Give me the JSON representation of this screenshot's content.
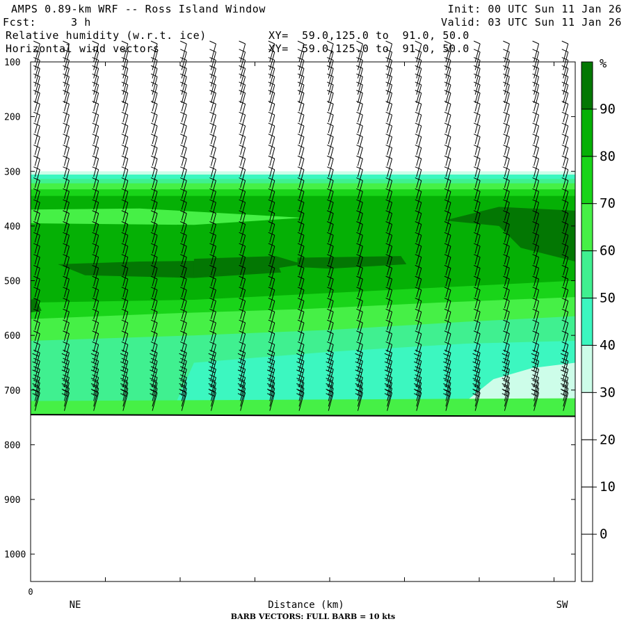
{
  "header": {
    "title": "AMPS 0.89-km WRF -- Ross Island Window",
    "fcst_label": "Fcst:",
    "fcst_value": "3 h",
    "init": "Init: 00 UTC Sun 11 Jan 26",
    "valid": "Valid: 03 UTC Sun 11 Jan 26",
    "field1": "Relative humidity (w.r.t. ice)",
    "field1_xy": "XY=  59.0,125.0 to  91.0, 50.0",
    "field2": "Horizontal wind vectors",
    "field2_xy": "XY=  59.0,125.0 to  91.0, 50.0"
  },
  "footer": {
    "barb_note": "BARB VECTORS:  FULL BARB = 10 kts"
  },
  "chart_data": {
    "type": "heatmap",
    "title": "Relative humidity (w.r.t. ice)",
    "xlabel": "Distance (km)",
    "x_left_label": "NE",
    "x_right_label": "SW",
    "x_origin_label": "0",
    "ylabel": "",
    "y_axis": "pressure (hPa), inverted",
    "ylim": [
      1050,
      100
    ],
    "yticks": [
      100,
      200,
      300,
      400,
      500,
      600,
      700,
      800,
      900,
      1000
    ],
    "colorbar": {
      "unit": "%",
      "levels": [
        0,
        10,
        20,
        30,
        40,
        50,
        60,
        70,
        80,
        90
      ],
      "colors": [
        "#ffffff",
        "#ffffff",
        "#ffffff",
        "#ffffff",
        "#cdfde9",
        "#3cf7c0",
        "#40f090",
        "#46f046",
        "#19d419",
        "#05b005",
        "#037703"
      ]
    },
    "contour_bands_description_hPa": [
      {
        "rh_range": "30-40",
        "top": 300,
        "bottom": 306
      },
      {
        "rh_range": "40-50",
        "top": 306,
        "bottom": 314
      },
      {
        "rh_range": "50-60",
        "top": 314,
        "bottom": 322
      },
      {
        "rh_range": "60-70",
        "top": 322,
        "bottom": 333
      },
      {
        "rh_range": "70-80",
        "top": 333,
        "bottom": 345
      },
      {
        "rh_range": "80-90",
        "top": 345,
        "bottom": 540
      },
      {
        "rh_range": "90+",
        "maxima_near_hPa": [
          480,
          470,
          460,
          390
        ]
      }
    ],
    "surface_pressure_hPa": {
      "left": 745,
      "right": 748
    },
    "wind_barbs": {
      "columns": 19,
      "levels_hPa": [
        100,
        115,
        130,
        145,
        160,
        175,
        190,
        210,
        230,
        250,
        270,
        290,
        310,
        330,
        350,
        370,
        390,
        410,
        430,
        450,
        470,
        490,
        510,
        530,
        550,
        570,
        590,
        610,
        630,
        650,
        665,
        680,
        695,
        710,
        720,
        730,
        738
      ],
      "barb_kts_upper": 10,
      "barb_kts_lower": 20
    }
  }
}
